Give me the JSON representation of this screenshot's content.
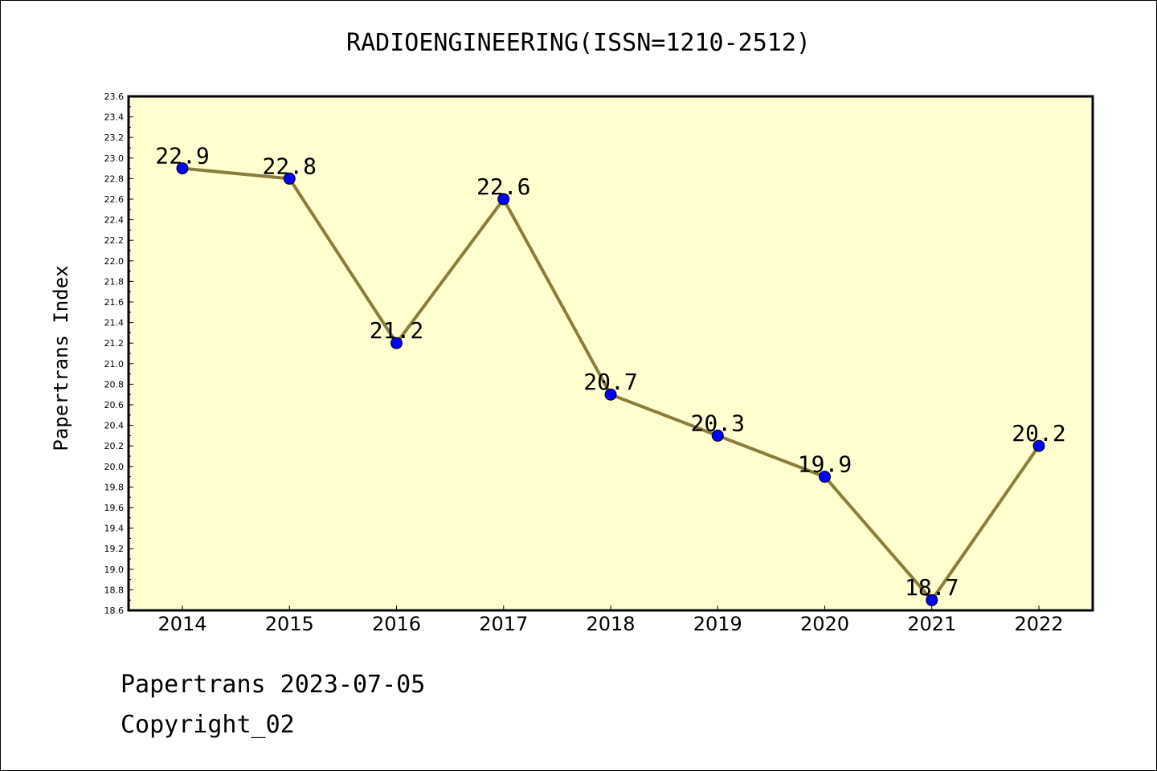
{
  "chart_data": {
    "type": "line",
    "title": "RADIOENGINEERING(ISSN=1210-2512)",
    "xlabel": "",
    "ylabel": "Papertrans Index",
    "categories": [
      "2014",
      "2015",
      "2016",
      "2017",
      "2018",
      "2019",
      "2020",
      "2021",
      "2022"
    ],
    "series": [
      {
        "values": [
          22.9,
          22.8,
          21.2,
          22.6,
          20.7,
          20.3,
          19.9,
          18.7,
          20.2
        ],
        "data_labels": [
          "22.9",
          "22.8",
          "21.2",
          "22.6",
          "20.7",
          "20.3",
          "19.9",
          "18.7",
          "20.2"
        ]
      }
    ],
    "ylim": [
      18.6,
      23.6
    ],
    "yticks": [
      "18.6",
      "18.8",
      "19.0",
      "19.2",
      "19.4",
      "19.6",
      "19.8",
      "20.0",
      "20.2",
      "20.4",
      "20.6",
      "20.8",
      "21.0",
      "21.2",
      "21.4",
      "21.6",
      "21.8",
      "22.0",
      "22.2",
      "22.4",
      "22.6",
      "22.8",
      "23.0",
      "23.2",
      "23.4",
      "23.6"
    ],
    "grid": false,
    "colors": {
      "plot_bg": "#ffffd0",
      "line": "#8b7d3a",
      "marker": "#0000ff"
    }
  },
  "footer": {
    "line1": "Papertrans 2023-07-05",
    "line2": "Copyright_02"
  }
}
